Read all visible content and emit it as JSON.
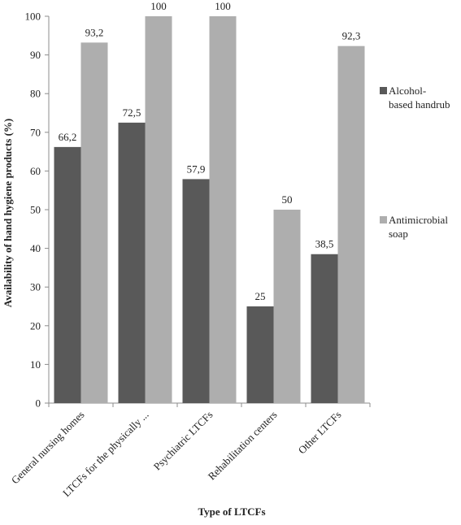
{
  "chart_data": {
    "type": "bar",
    "title": "",
    "xlabel": "Type of LTCFs",
    "ylabel": "Availability of hand hygiene products (%)",
    "ylim": [
      0,
      100
    ],
    "yticks": [
      0,
      10,
      20,
      30,
      40,
      50,
      60,
      70,
      80,
      90,
      100
    ],
    "grid": false,
    "legend_position": "right",
    "categories": [
      "General nursing homes",
      "LTCFs for the physically ...",
      "Psychiatric LTCFs",
      "Rehabilitation centers",
      "Other LTCFs"
    ],
    "series": [
      {
        "name": "Alcohol-based handrub",
        "legend_lines": [
          "Alcohol-",
          "based handrub"
        ],
        "color": "#595959",
        "values": [
          66.2,
          72.5,
          57.9,
          25,
          38.5
        ],
        "labels": [
          "66,2",
          "72,5",
          "57,9",
          "25",
          "38,5"
        ]
      },
      {
        "name": "Antimicrobial soap",
        "legend_lines": [
          "Antimicrobial",
          "soap"
        ],
        "color": "#aeaeae",
        "values": [
          93.2,
          100,
          100,
          50,
          92.3
        ],
        "labels": [
          "93,2",
          "100",
          "100",
          "50",
          "92,3"
        ]
      }
    ]
  }
}
